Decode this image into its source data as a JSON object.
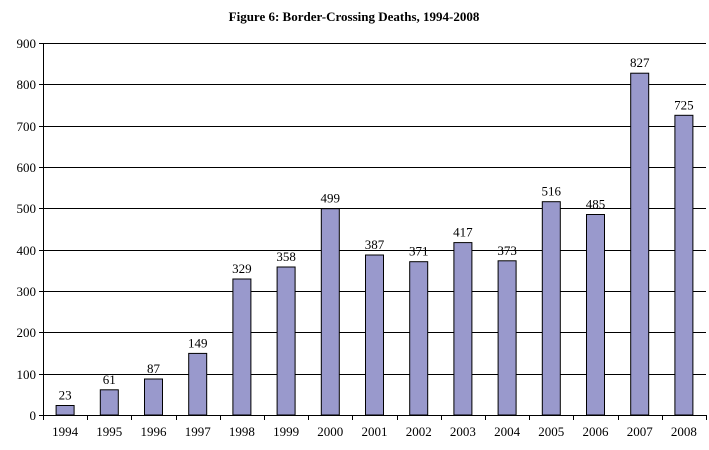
{
  "chart_data": {
    "type": "bar",
    "title": "Figure 6: Border-Crossing Deaths, 1994-2008",
    "xlabel": "",
    "ylabel": "",
    "categories": [
      "1994",
      "1995",
      "1996",
      "1997",
      "1998",
      "1999",
      "2000",
      "2001",
      "2002",
      "2003",
      "2004",
      "2005",
      "2006",
      "2007",
      "2008"
    ],
    "values": [
      23,
      61,
      87,
      149,
      329,
      358,
      499,
      387,
      371,
      417,
      373,
      516,
      485,
      827,
      725
    ],
    "data_labels": [
      "23",
      "61",
      "87",
      "149",
      "329",
      "358",
      "499",
      "387",
      "371",
      "417",
      "373",
      "516",
      "485",
      "827",
      "725"
    ],
    "ylim": [
      0,
      900
    ],
    "yticks": [
      0,
      100,
      200,
      300,
      400,
      500,
      600,
      700,
      800,
      900
    ],
    "ytick_labels": [
      "0",
      "100",
      "200",
      "300",
      "400",
      "500",
      "600",
      "700",
      "800",
      "900"
    ],
    "grid": true,
    "legend": "none",
    "bar_color": "#9999cc",
    "bar_edge_color": "#000000"
  }
}
